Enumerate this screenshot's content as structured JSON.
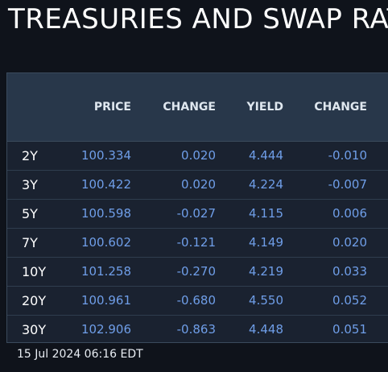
{
  "title": "TREASURIES AND SWAP RAT",
  "columns": [
    "",
    "PRICE",
    "CHANGE",
    "YIELD",
    "CHANGE"
  ],
  "rows": [
    {
      "tenor": "2Y",
      "price": "100.334",
      "price_change": "0.020",
      "yield": "4.444",
      "yield_change": "-0.010"
    },
    {
      "tenor": "3Y",
      "price": "100.422",
      "price_change": "0.020",
      "yield": "4.224",
      "yield_change": "-0.007"
    },
    {
      "tenor": "5Y",
      "price": "100.598",
      "price_change": "-0.027",
      "yield": "4.115",
      "yield_change": "0.006"
    },
    {
      "tenor": "7Y",
      "price": "100.602",
      "price_change": "-0.121",
      "yield": "4.149",
      "yield_change": "0.020"
    },
    {
      "tenor": "10Y",
      "price": "101.258",
      "price_change": "-0.270",
      "yield": "4.219",
      "yield_change": "0.033"
    },
    {
      "tenor": "20Y",
      "price": "100.961",
      "price_change": "-0.680",
      "yield": "4.550",
      "yield_change": "0.052"
    },
    {
      "tenor": "30Y",
      "price": "102.906",
      "price_change": "-0.863",
      "yield": "4.448",
      "yield_change": "0.051"
    }
  ],
  "timestamp": "15 Jul 2024 06:16 EDT",
  "colors": {
    "background": "#0f131b",
    "header": "#28374a",
    "body": "#1a2230",
    "value": "#6f9ee8",
    "tenor": "#ffffff"
  }
}
